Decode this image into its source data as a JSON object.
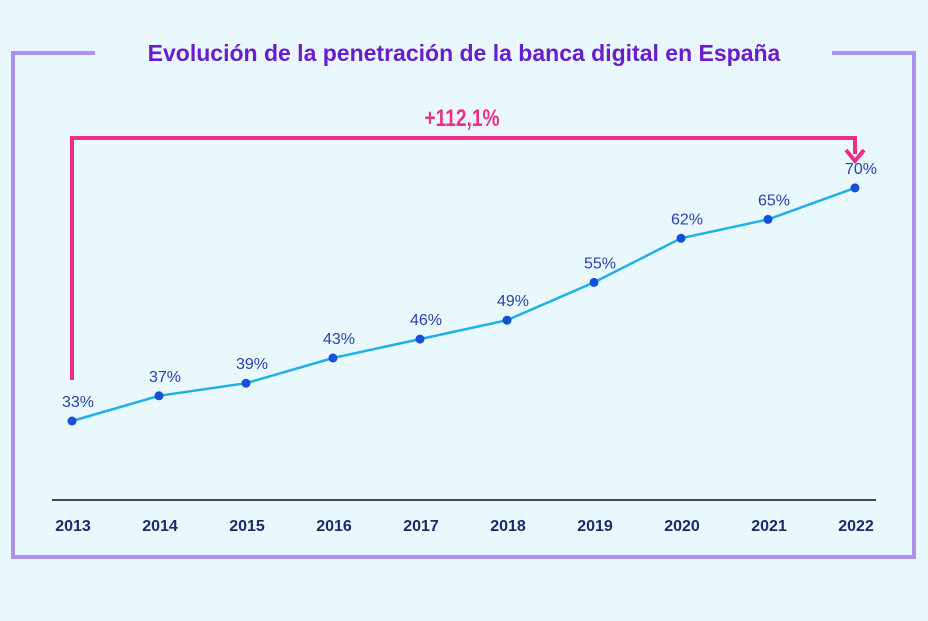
{
  "chart_data": {
    "type": "line",
    "title": "Evolución de la penetración de la banca digital en España",
    "categories": [
      "2013",
      "2014",
      "2015",
      "2016",
      "2017",
      "2018",
      "2019",
      "2020",
      "2021",
      "2022"
    ],
    "values": [
      33,
      37,
      39,
      43,
      46,
      49,
      55,
      62,
      65,
      70
    ],
    "data_labels": [
      "33%",
      "37%",
      "39%",
      "43%",
      "46%",
      "49%",
      "55%",
      "62%",
      "65%",
      "70%"
    ],
    "annotation": "+112,1%",
    "xlabel": "",
    "ylabel": "",
    "grid": false,
    "legend": "none",
    "colors": {
      "line": "#1fb0e6",
      "point": "#1450d8",
      "label": "#2c3fb0",
      "annotation": "#ee2f8a",
      "frame": "#ab92ef",
      "title": "#6a1ccf",
      "axis_text": "#1c2a6b"
    }
  }
}
